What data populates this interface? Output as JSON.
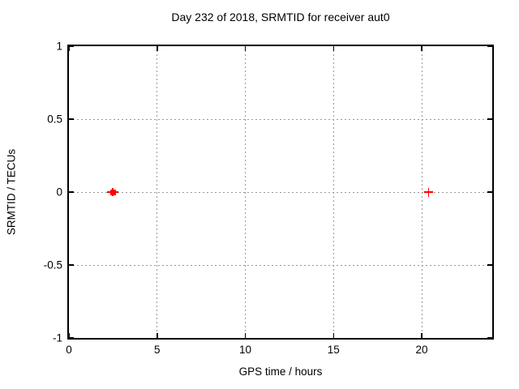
{
  "chart_data": {
    "type": "scatter",
    "title": "Day 232 of 2018, SRMTID for receiver aut0",
    "xlabel": "GPS time / hours",
    "ylabel": "SRMTID / TECUs",
    "xlim": [
      0,
      24
    ],
    "ylim": [
      -1,
      1
    ],
    "xtick_values": [
      0,
      5,
      10,
      15,
      20
    ],
    "xtick_labels": [
      "0",
      "5",
      "10",
      "15",
      "20"
    ],
    "ytick_values": [
      1,
      0.5,
      0,
      -0.5,
      -1
    ],
    "ytick_labels": [
      "1",
      "0.5",
      "0",
      "-0.5",
      "-1"
    ],
    "grid": "dotted",
    "legend": "none",
    "series": [
      {
        "name": "SRMTID",
        "color": "#ff0000",
        "marker": "plus",
        "points": [
          {
            "x": 2.5,
            "y": 0,
            "cluster": true
          },
          {
            "x": 20.4,
            "y": 0,
            "cluster": false
          }
        ]
      }
    ]
  },
  "colors": {
    "marker": "#ff0000",
    "grid": "#999999",
    "axis": "#000000",
    "background": "#ffffff",
    "text": "#000000"
  }
}
